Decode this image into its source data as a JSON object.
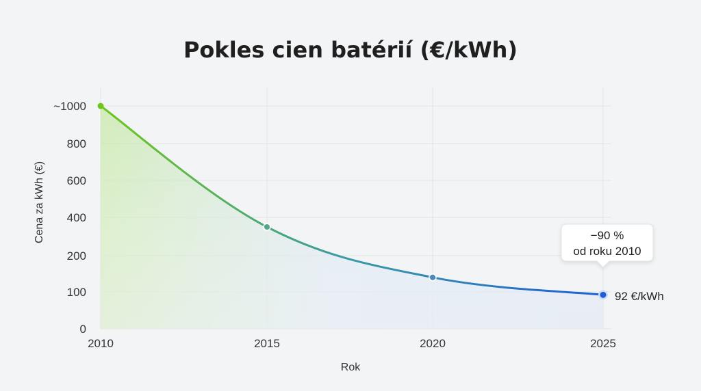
{
  "chart_data": {
    "type": "line",
    "title": "Pokles cien batérií (€/kWh)",
    "xlabel": "Rok",
    "ylabel": "Cena za kWh (€)",
    "x_ticks": [
      "2010",
      "2015",
      "2020",
      "2025"
    ],
    "y_ticks": [
      "0",
      "100",
      "200",
      "400",
      "600",
      "800",
      "~1000"
    ],
    "y_tick_values": [
      0,
      100,
      200,
      400,
      600,
      800,
      1000
    ],
    "grid": true,
    "series": [
      {
        "color_start": "#6fc61a",
        "color_end": "#1f5fd6",
        "points": [
          {
            "x": 2010,
            "y": 1000
          },
          {
            "x": 2015,
            "y": 350
          },
          {
            "x": 2020,
            "y": 140
          },
          {
            "x": 2025,
            "y": 92
          }
        ]
      }
    ],
    "end_label": "92 €/kWh",
    "callout": {
      "line1": "−90 %",
      "line2": "od roku 2010"
    }
  }
}
